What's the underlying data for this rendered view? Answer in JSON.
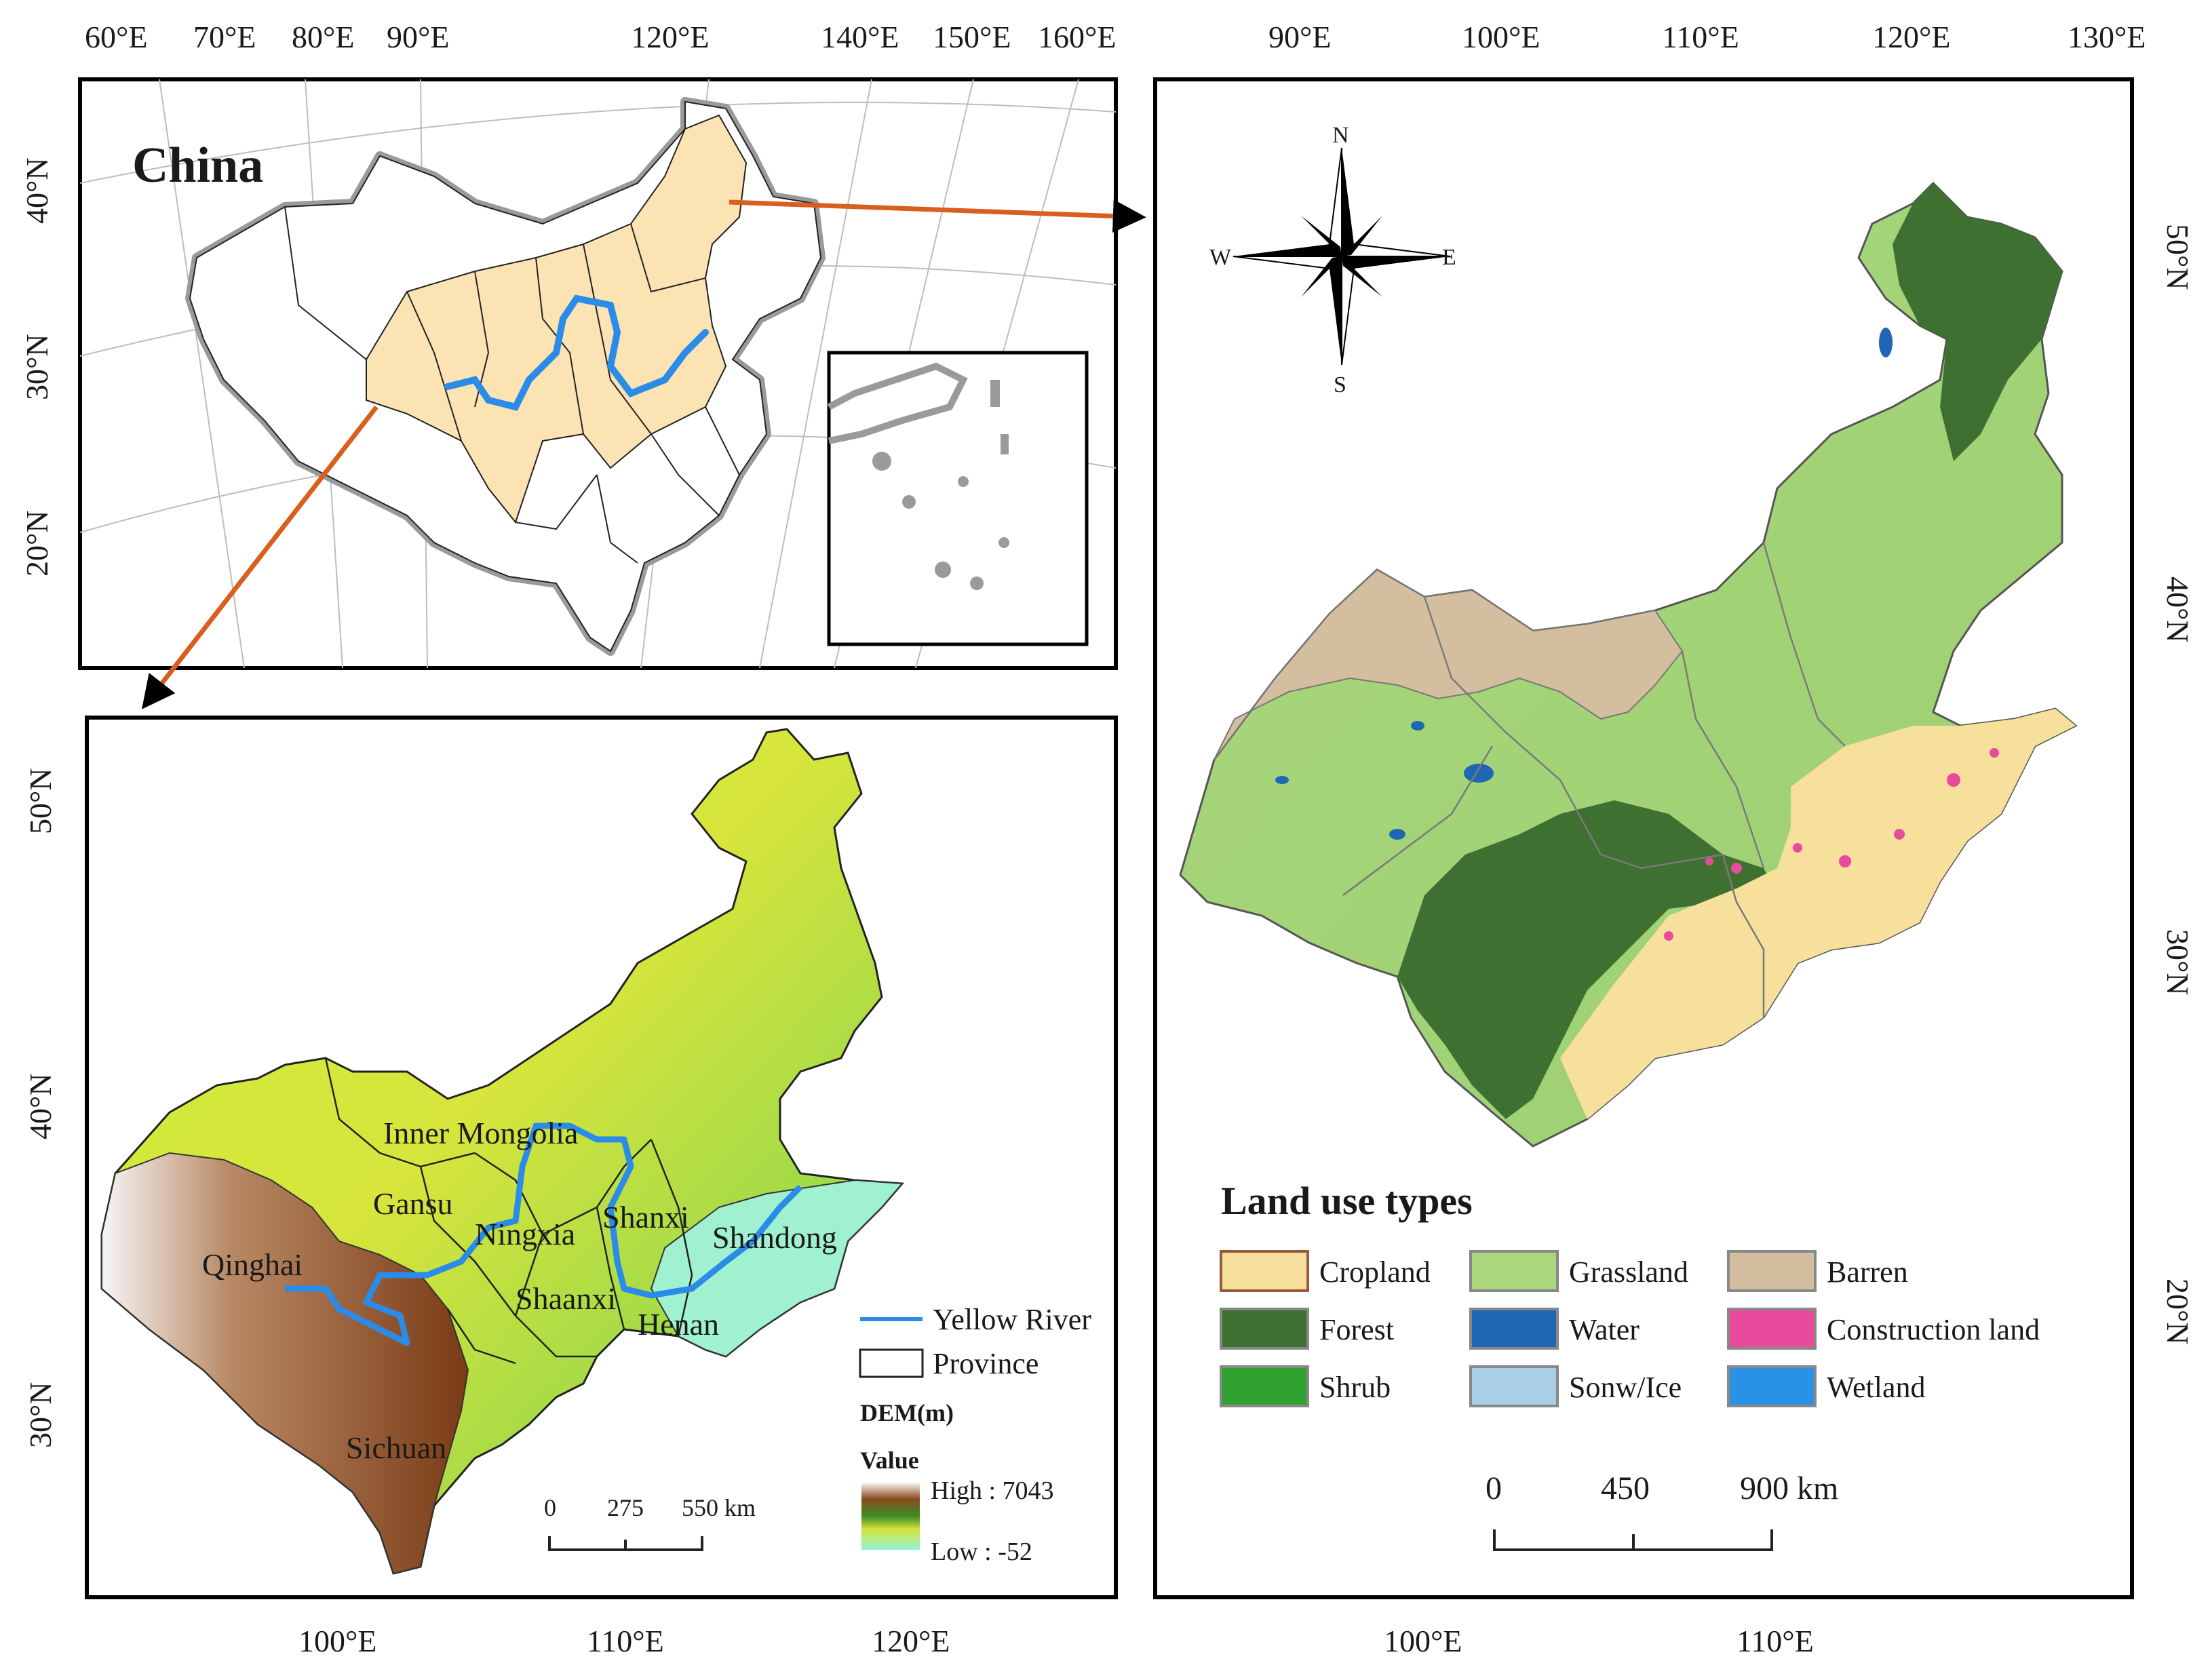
{
  "inset_map": {
    "title": "China",
    "top_ticks": [
      "60°E",
      "70°E",
      "80°E",
      "90°E",
      "120°E",
      "140°E",
      "150°E",
      "160°E"
    ],
    "left_ticks": [
      "40°N",
      "30°N",
      "20°N"
    ]
  },
  "dem_map": {
    "left_ticks": [
      "50°N",
      "40°N",
      "30°N"
    ],
    "bottom_ticks": [
      "100°E",
      "110°E",
      "120°E"
    ],
    "provinces": [
      "Inner Mongolia",
      "Gansu",
      "Ningxia",
      "Shanxi",
      "Shandong",
      "Qinghai",
      "Shaanxi",
      "Henan",
      "Sichuan"
    ],
    "legend": {
      "river": "Yellow River",
      "province": "Province",
      "dem_title": "DEM(m)",
      "value_title": "Value",
      "high": "High : 7043",
      "low": "Low : -52"
    },
    "scale_labels": [
      "0",
      "275",
      "550 km"
    ],
    "colors": {
      "river": "#2b8be8",
      "high": "#7a3b16",
      "low": "#8ff5d8"
    }
  },
  "landuse_map": {
    "top_ticks": [
      "90°E",
      "100°E",
      "110°E",
      "120°E",
      "130°E"
    ],
    "right_ticks": [
      "50°N",
      "40°N",
      "30°N",
      "20°N"
    ],
    "bottom_ticks": [
      "100°E",
      "110°E"
    ],
    "compass": {
      "n": "N",
      "s": "S",
      "e": "E",
      "w": "W"
    },
    "legend_title": "Land use types",
    "classes": [
      {
        "label": "Cropland",
        "color": "#f7df9c"
      },
      {
        "label": "Grassland",
        "color": "#aad77c"
      },
      {
        "label": "Barren",
        "color": "#d3bfa0"
      },
      {
        "label": "Forest",
        "color": "#3e7032"
      },
      {
        "label": "Water",
        "color": "#1f66b4"
      },
      {
        "label": "Construction land",
        "color": "#e84a9c"
      },
      {
        "label": "Shrub",
        "color": "#2fa12f"
      },
      {
        "label": "Sonw/Ice",
        "color": "#a9cfe6"
      },
      {
        "label": "Wetland",
        "color": "#2a92e6"
      }
    ],
    "scale_labels": [
      "0",
      "450",
      "900 km"
    ]
  },
  "colors": {
    "highlight": "#fbe3b4",
    "arrow": "#d95f1e"
  }
}
